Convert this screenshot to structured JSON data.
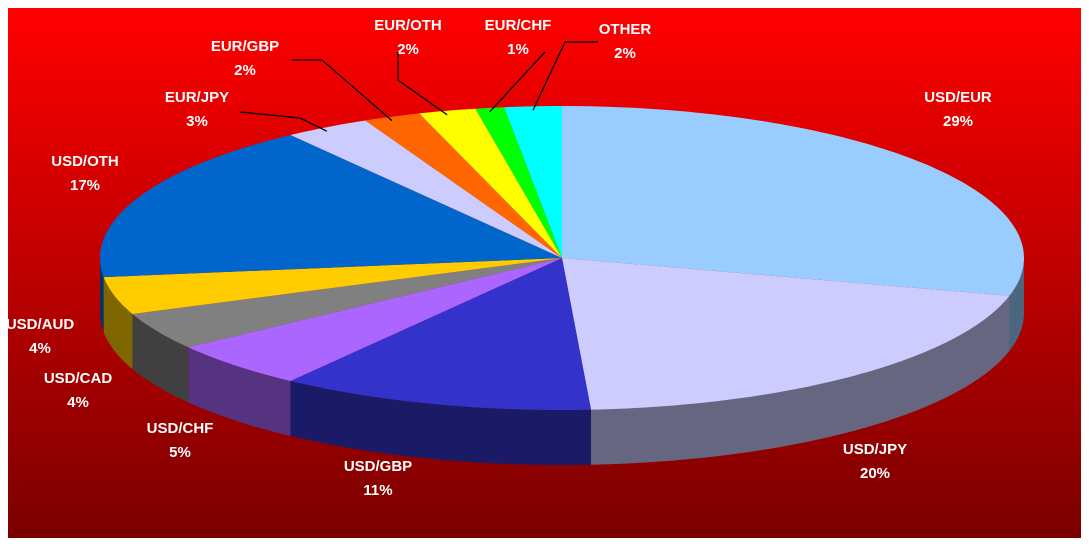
{
  "chart_data": {
    "type": "pie",
    "categories": [
      "USD/EUR",
      "USD/JPY",
      "USD/GBP",
      "USD/CHF",
      "USD/CAD",
      "USD/AUD",
      "USD/OTH",
      "EUR/JPY",
      "EUR/GBP",
      "EUR/OTH",
      "EUR/CHF",
      "OTHER"
    ],
    "values": [
      29,
      20,
      11,
      5,
      4,
      4,
      17,
      3,
      2,
      2,
      1,
      2
    ],
    "value_labels": [
      "29%",
      "20%",
      "11%",
      "5%",
      "4%",
      "4%",
      "17%",
      "3%",
      "2%",
      "2%",
      "1%",
      "2%"
    ],
    "colors": [
      "#99ccff",
      "#ccccff",
      "#3333cc",
      "#aa66ff",
      "#808080",
      "#ffcc00",
      "#0066cc",
      "#ccccff",
      "#ff6600",
      "#ffff00",
      "#00ff00",
      "#00ffff"
    ]
  }
}
